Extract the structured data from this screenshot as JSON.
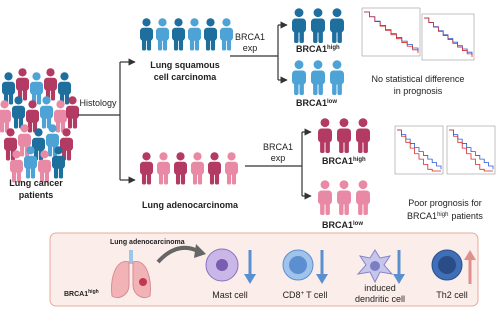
{
  "patients": {
    "label_lines": [
      "Lung cancer",
      "patients"
    ]
  },
  "histology": "Histology",
  "squamous": {
    "label_lines": [
      "Lung squamous",
      "cell carcinoma"
    ],
    "split_lines": [
      "BRCA1",
      "exp"
    ],
    "high": {
      "gene": "BRCA1",
      "level": "high"
    },
    "low": {
      "gene": "BRCA1",
      "level": "low"
    },
    "outcome_lines": [
      "No statistical difference",
      "in prognosis"
    ]
  },
  "adeno": {
    "label": "Lung adenocarcinoma",
    "split_lines": [
      "BRCA1",
      "exp"
    ],
    "high": {
      "gene": "BRCA1",
      "level": "high"
    },
    "low": {
      "gene": "BRCA1",
      "level": "low"
    },
    "outcome": {
      "line1": "Poor prognosis for",
      "gene": "BRCA1",
      "level": "high",
      "rest": "patients"
    }
  },
  "mechanism": {
    "tissue": "Lung adenocarcinoma",
    "group": {
      "gene": "BRCA1",
      "level": "high"
    },
    "cells": [
      {
        "lines": [
          "Mast cell"
        ]
      },
      {
        "name": "CD8",
        "sup": "+",
        "rest": "T cell"
      },
      {
        "lines": [
          "induced",
          "dendritic cell"
        ]
      },
      {
        "lines": [
          "Th2 cell"
        ]
      }
    ]
  }
}
